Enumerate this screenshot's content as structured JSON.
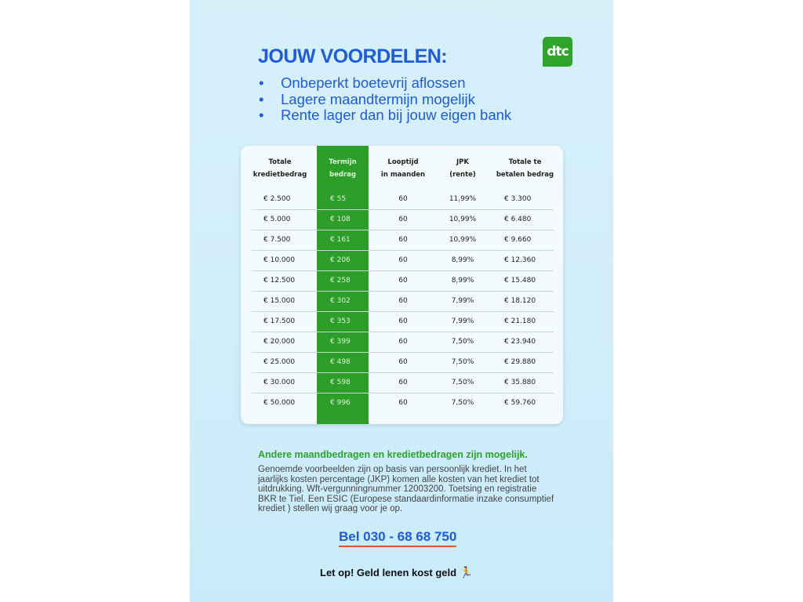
{
  "header": {
    "title": "JOUW VOORDELEN:",
    "logo_text": "dtc",
    "brand_color": "#2ea42b",
    "accent_color": "#1e5be0"
  },
  "benefits": [
    "Onbeperkt boetevrij aflossen",
    "Lagere maandtermijn mogelijk",
    "Rente lager dan bij jouw eigen bank"
  ],
  "table": {
    "headers": [
      [
        "Totale",
        "kredietbedrag"
      ],
      [
        "Termijn",
        "bedrag"
      ],
      [
        "Looptijd",
        "in maanden"
      ],
      [
        "JPK",
        "(rente)"
      ],
      [
        "Totale te",
        "betalen bedrag"
      ]
    ],
    "rows": [
      [
        "€ 2.500",
        "€ 55",
        "60",
        "11,99%",
        "€ 3.300"
      ],
      [
        "€ 5.000",
        "€ 108",
        "60",
        "10,99%",
        "€ 6.480"
      ],
      [
        "€ 7.500",
        "€ 161",
        "60",
        "10,99%",
        "€ 9.660"
      ],
      [
        "€ 10.000",
        "€ 206",
        "60",
        "8,99%",
        "€ 12.360"
      ],
      [
        "€ 12.500",
        "€ 258",
        "60",
        "8,99%",
        "€ 15.480"
      ],
      [
        "€ 15.000",
        "€ 302",
        "60",
        "7,99%",
        "€ 18.120"
      ],
      [
        "€ 17.500",
        "€ 353",
        "60",
        "7,99%",
        "€ 21.180"
      ],
      [
        "€ 20.000",
        "€ 399",
        "60",
        "7,50%",
        "€ 23.940"
      ],
      [
        "€ 25.000",
        "€ 498",
        "60",
        "7,50%",
        "€ 29.880"
      ],
      [
        "€ 30.000",
        "€ 598",
        "60",
        "7,50%",
        "€ 35.880"
      ],
      [
        "€ 50.000",
        "€ 996",
        "60",
        "7,50%",
        "€ 59.760"
      ]
    ]
  },
  "note": {
    "title": "Andere maandbedragen en kredietbedragen zijn mogelijk.",
    "body": "Genoemde voorbeelden zijn op basis van persoonlijk krediet. In het jaarlijks kosten percentage (JKP) komen alle kosten van het krediet tot uitdrukking. Wft-vergunningnummer 12003200. Toetsing en registratie BKR te Tiel. Een ESIC (Europese standaardinformatie inzake consumptief krediet ) stellen wij graag voor je op."
  },
  "contact": {
    "phone_label": "Bel 030 - 68 68 750"
  },
  "warning": {
    "text": "Let op! Geld lenen kost geld",
    "icon": "running-person-icon"
  }
}
